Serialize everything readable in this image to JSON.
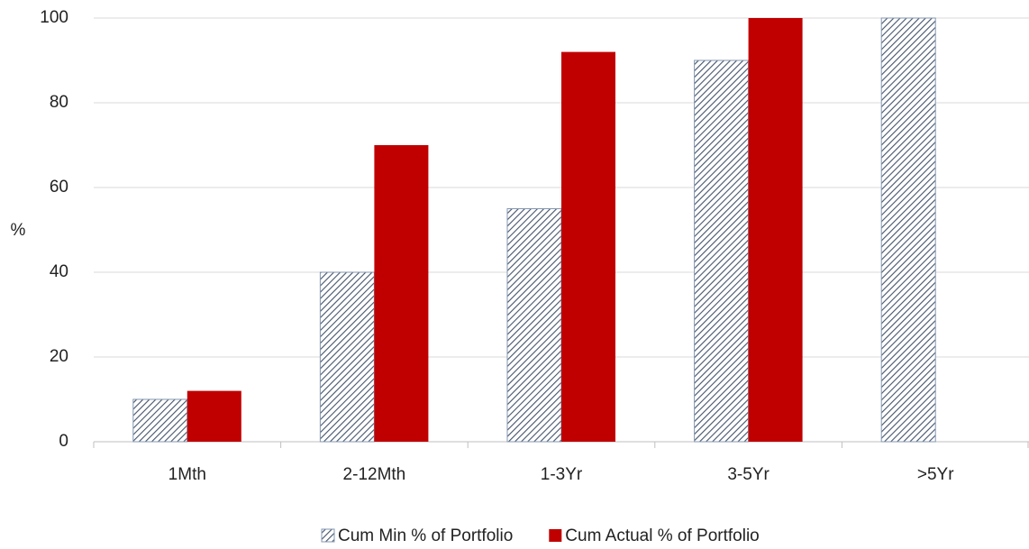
{
  "chart_data": {
    "type": "bar",
    "y_label": "%",
    "categories": [
      "1Mth",
      "2-12Mth",
      "1-3Yr",
      "3-5Yr",
      ">5Yr"
    ],
    "series": [
      {
        "name": "Cum Min % of Portfolio",
        "color": "#44546a",
        "hatch": true,
        "values": [
          10,
          40,
          55,
          90,
          100
        ]
      },
      {
        "name": "Cum Actual % of Portfolio",
        "color": "#c00000",
        "hatch": false,
        "values": [
          12,
          70,
          92,
          100,
          null
        ]
      }
    ],
    "ylim": [
      0,
      100
    ],
    "yticks": [
      0,
      20,
      40,
      60,
      80,
      100
    ],
    "grid": true,
    "legend": "bottom"
  }
}
